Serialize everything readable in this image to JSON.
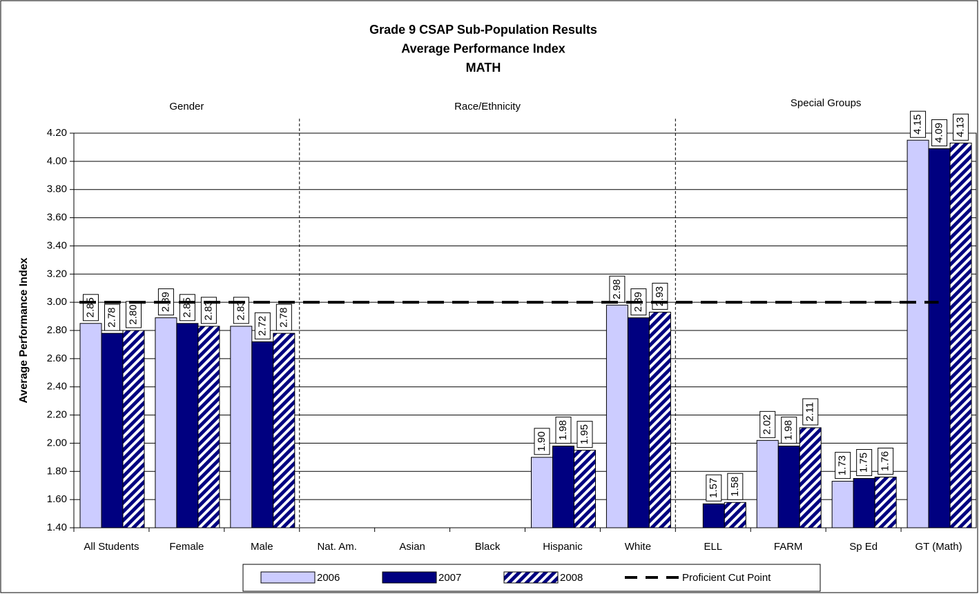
{
  "chart_data": {
    "type": "bar",
    "title_lines": [
      "Grade 9 CSAP Sub-Population Results",
      "Average Performance Index",
      "MATH"
    ],
    "y_label": "Average Performance Index",
    "categories": [
      "All Students",
      "Female",
      "Male",
      "Nat. Am.",
      "Asian",
      "Black",
      "Hispanic",
      "White",
      "ELL",
      "FARM",
      "Sp Ed",
      "GT (Math)"
    ],
    "groups": [
      {
        "label": "Gender",
        "start": 0,
        "end": 2
      },
      {
        "label": "Race/Ethnicity",
        "start": 3,
        "end": 7
      },
      {
        "label": "Special Groups",
        "start": 8,
        "end": 11
      }
    ],
    "series": [
      {
        "name": "2006",
        "color": "#ccccff",
        "pattern": "solid",
        "values": [
          2.85,
          2.89,
          2.83,
          null,
          null,
          null,
          1.9,
          2.98,
          null,
          2.02,
          1.73,
          4.15
        ],
        "value_labels": [
          "2.85",
          "2.89",
          "2.83",
          null,
          null,
          null,
          "1.90",
          "2.98",
          null,
          "2.02",
          "1.73",
          "4.15"
        ]
      },
      {
        "name": "2007",
        "color": "#000080",
        "pattern": "solid",
        "values": [
          2.78,
          2.85,
          2.72,
          null,
          null,
          null,
          1.98,
          2.89,
          1.57,
          1.98,
          1.75,
          4.09
        ],
        "value_labels": [
          "2.78",
          "2.85",
          "2.72",
          null,
          null,
          null,
          "1.98",
          "2.89",
          "1.57",
          "1.98",
          "1.75",
          "4.09"
        ]
      },
      {
        "name": "2008",
        "color": "#000080",
        "pattern": "hatch",
        "values": [
          2.8,
          2.83,
          2.78,
          null,
          null,
          null,
          1.95,
          2.93,
          1.58,
          2.11,
          1.76,
          4.13
        ],
        "value_labels": [
          "2.80",
          "2.83",
          "2.78",
          null,
          null,
          null,
          "1.95",
          "2.93",
          "1.58",
          "2.11",
          "1.76",
          "4.13"
        ]
      }
    ],
    "reference_line": {
      "name": "Proficient Cut Point",
      "value": 3.0,
      "color": "#000000"
    },
    "ylim": [
      1.4,
      4.2
    ],
    "yticks": [
      {
        "value": 1.4,
        "label": "1.40"
      },
      {
        "value": 1.6,
        "label": "1.60"
      },
      {
        "value": 1.8,
        "label": "1.80"
      },
      {
        "value": 2.0,
        "label": "2.00"
      },
      {
        "value": 2.2,
        "label": "2.20"
      },
      {
        "value": 2.4,
        "label": "2.40"
      },
      {
        "value": 2.6,
        "label": "2.60"
      },
      {
        "value": 2.8,
        "label": "2.80"
      },
      {
        "value": 3.0,
        "label": "3.00"
      },
      {
        "value": 3.2,
        "label": "3.20"
      },
      {
        "value": 3.4,
        "label": "3.40"
      },
      {
        "value": 3.6,
        "label": "3.60"
      },
      {
        "value": 3.8,
        "label": "3.80"
      },
      {
        "value": 4.0,
        "label": "4.00"
      },
      {
        "value": 4.2,
        "label": "4.20"
      }
    ],
    "grid": true,
    "legend": "bottom"
  }
}
